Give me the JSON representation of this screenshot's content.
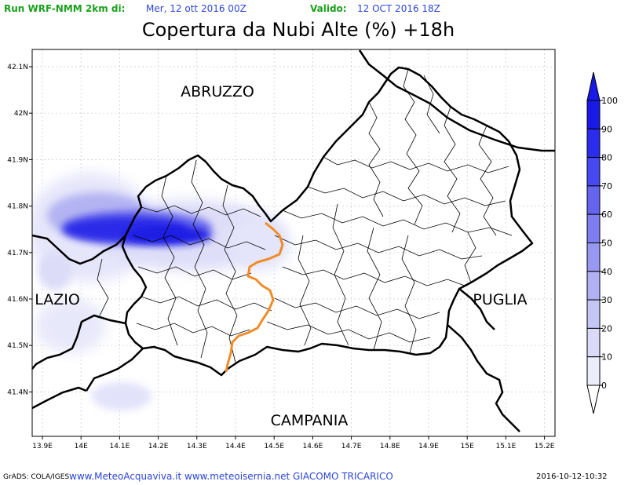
{
  "header": {
    "run_label": "Run WRF-NMM 2km di:",
    "run_date": "Mer, 12 ott 2016 00Z",
    "valid_label": "Valido:",
    "valid_date": "12 OCT 2016 18Z"
  },
  "title": "Copertura da Nubi Alte (%) +18h",
  "map": {
    "lon_ticks": [
      "13.9E",
      "14E",
      "14.1E",
      "14.2E",
      "14.3E",
      "14.4E",
      "14.5E",
      "14.6E",
      "14.7E",
      "14.8E",
      "14.9E",
      "15E",
      "15.1E",
      "15.2E"
    ],
    "lat_ticks": [
      "42.1N",
      "42N",
      "41.9N",
      "41.8N",
      "41.7N",
      "41.6N",
      "41.5N",
      "41.4N"
    ],
    "regions": [
      {
        "name": "ABRUZZO"
      },
      {
        "name": "LAZIO"
      },
      {
        "name": "PUGLIA"
      },
      {
        "name": "CAMPANIA"
      }
    ],
    "colorbar": {
      "levels": [
        "100",
        "90",
        "80",
        "70",
        "60",
        "50",
        "40",
        "30",
        "20",
        "10",
        "0"
      ],
      "colors": [
        "#1a1ae6",
        "#2c2cef",
        "#4848f0",
        "#6464ef",
        "#7e7ef0",
        "#9898f0",
        "#b0b0f2",
        "#c6c6f5",
        "#dadaf8",
        "#ececfb"
      ]
    },
    "border_color": "#000000",
    "province_line_color": "#f08c28",
    "cloud_color": "#1414e6"
  },
  "footer": {
    "credit": "GrADS: COLA/IGES",
    "sites": "www.MeteoAcquaviva.it www.meteoisernia.net GIACOMO TRICARICO",
    "timestamp": "2016-10-12-10:32"
  }
}
